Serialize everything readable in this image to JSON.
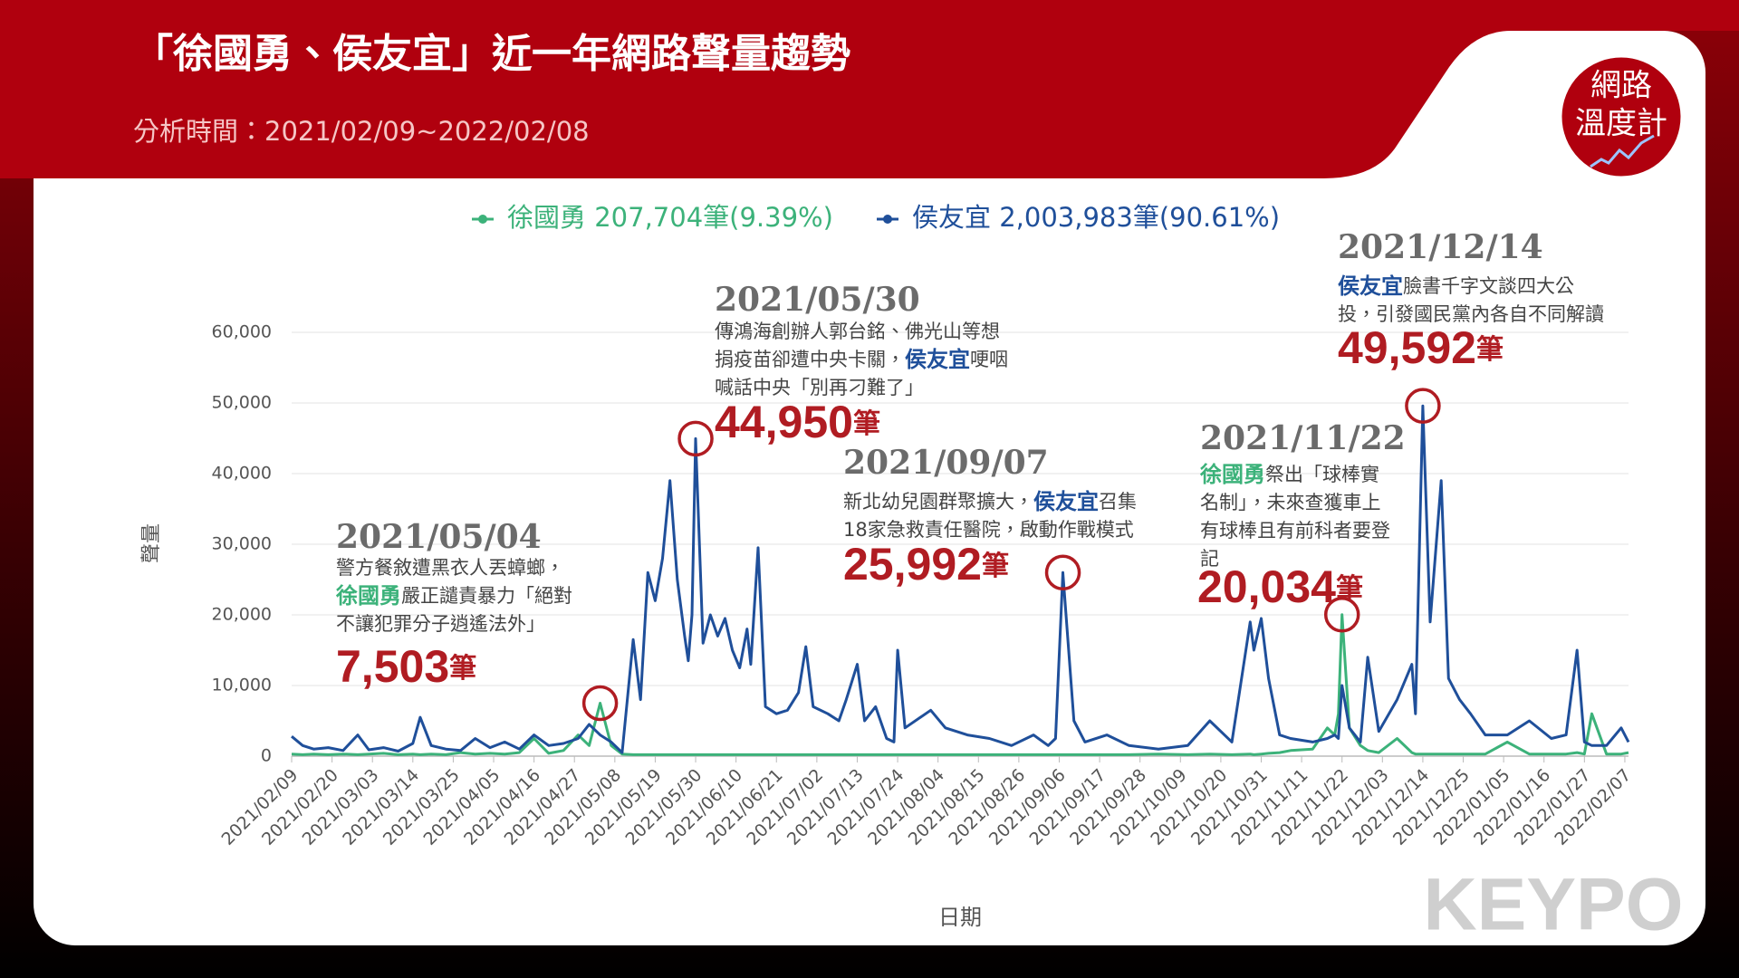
{
  "chart_data": {
    "type": "line",
    "title": "「徐國勇、侯友宜」近一年網路聲量趨勢",
    "subtitle": "分析時間：2021/02/09~2022/02/08",
    "logo": [
      "網路",
      "溫度計"
    ],
    "watermark": "KEYPO",
    "ylabel": "聲量",
    "xlabel": "日期",
    "ylim": [
      0,
      60000
    ],
    "yticks": [
      0,
      {
        "value": 10000,
        "label": "10,000"
      },
      {
        "value": 20000,
        "label": "20,000"
      },
      {
        "value": 30000,
        "label": "30,000"
      },
      {
        "value": 40000,
        "label": "40,000"
      },
      {
        "value": 50000,
        "label": "50,000"
      },
      {
        "value": 60000,
        "label": "60,000"
      }
    ],
    "xlim": [
      "2021/02/09",
      "2022/02/08"
    ],
    "xticks": [
      "2021/02/09",
      "2021/02/20",
      "2021/03/03",
      "2021/03/14",
      "2021/03/25",
      "2021/04/05",
      "2021/04/16",
      "2021/04/27",
      "2021/05/08",
      "2021/05/19",
      "2021/05/30",
      "2021/06/10",
      "2021/06/21",
      "2021/07/02",
      "2021/07/13",
      "2021/07/24",
      "2021/08/04",
      "2021/08/15",
      "2021/08/26",
      "2021/09/06",
      "2021/09/17",
      "2021/09/28",
      "2021/10/09",
      "2021/10/20",
      "2021/10/31",
      "2021/11/11",
      "2021/11/22",
      "2021/12/03",
      "2021/12/14",
      "2021/12/25",
      "2022/01/05",
      "2022/01/16",
      "2022/01/27",
      "2022/02/07"
    ],
    "grid": true,
    "x": [
      "2021/02/09",
      "2021/02/12",
      "2021/02/15",
      "2021/02/19",
      "2021/02/23",
      "2021/02/27",
      "2021/03/02",
      "2021/03/06",
      "2021/03/10",
      "2021/03/14",
      "2021/03/16",
      "2021/03/19",
      "2021/03/23",
      "2021/03/27",
      "2021/03/31",
      "2021/04/04",
      "2021/04/08",
      "2021/04/12",
      "2021/04/16",
      "2021/04/20",
      "2021/04/24",
      "2021/04/28",
      "2021/05/01",
      "2021/05/04",
      "2021/05/07",
      "2021/05/10",
      "2021/05/13",
      "2021/05/15",
      "2021/05/17",
      "2021/05/19",
      "2021/05/21",
      "2021/05/23",
      "2021/05/25",
      "2021/05/27",
      "2021/05/28",
      "2021/05/29",
      "2021/05/30",
      "2021/06/01",
      "2021/06/03",
      "2021/06/05",
      "2021/06/07",
      "2021/06/09",
      "2021/06/11",
      "2021/06/13",
      "2021/06/14",
      "2021/06/16",
      "2021/06/18",
      "2021/06/21",
      "2021/06/24",
      "2021/06/27",
      "2021/06/29",
      "2021/07/01",
      "2021/07/05",
      "2021/07/08",
      "2021/07/10",
      "2021/07/13",
      "2021/07/15",
      "2021/07/18",
      "2021/07/21",
      "2021/07/23",
      "2021/07/24",
      "2021/07/26",
      "2021/08/02",
      "2021/08/06",
      "2021/08/12",
      "2021/08/18",
      "2021/08/24",
      "2021/08/30",
      "2021/09/03",
      "2021/09/05",
      "2021/09/07",
      "2021/09/10",
      "2021/09/13",
      "2021/09/19",
      "2021/09/25",
      "2021/10/03",
      "2021/10/11",
      "2021/10/17",
      "2021/10/23",
      "2021/10/28",
      "2021/10/29",
      "2021/10/31",
      "2021/11/02",
      "2021/11/05",
      "2021/11/08",
      "2021/11/14",
      "2021/11/18",
      "2021/11/20",
      "2021/11/21",
      "2021/11/22",
      "2021/11/24",
      "2021/11/27",
      "2021/11/29",
      "2021/12/02",
      "2021/12/07",
      "2021/12/11",
      "2021/12/12",
      "2021/12/14",
      "2021/12/16",
      "2021/12/19",
      "2021/12/21",
      "2021/12/24",
      "2021/12/27",
      "2021/12/31",
      "2022/01/06",
      "2022/01/12",
      "2022/01/18",
      "2022/01/22",
      "2022/01/25",
      "2022/01/27",
      "2022/01/29",
      "2022/02/02",
      "2022/02/06",
      "2022/02/08"
    ],
    "series": [
      {
        "name": "徐國勇",
        "legend_suffix": "207,704筆(9.39%)",
        "color": "#3cb27a",
        "values": [
          300,
          200,
          300,
          200,
          300,
          200,
          300,
          400,
          200,
          300,
          200,
          300,
          200,
          500,
          300,
          400,
          300,
          500,
          2500,
          400,
          800,
          3000,
          1500,
          7503,
          1500,
          300,
          200,
          200,
          200,
          200,
          200,
          200,
          200,
          200,
          200,
          200,
          200,
          200,
          200,
          200,
          200,
          200,
          200,
          200,
          200,
          200,
          200,
          200,
          200,
          200,
          200,
          200,
          200,
          200,
          200,
          200,
          200,
          200,
          200,
          200,
          200,
          200,
          200,
          200,
          200,
          200,
          200,
          200,
          200,
          200,
          200,
          200,
          200,
          200,
          200,
          300,
          200,
          300,
          200,
          300,
          200,
          300,
          400,
          500,
          800,
          1000,
          4000,
          3000,
          6000,
          20034,
          4000,
          1500,
          800,
          500,
          2500,
          500,
          300,
          300,
          300,
          300,
          300,
          300,
          300,
          300,
          2000,
          300,
          300,
          300,
          500,
          300,
          6000,
          300,
          300,
          500
        ]
      },
      {
        "name": "侯友宜",
        "legend_suffix": "2,003,983筆(90.61%)",
        "color": "#1f4f9a",
        "values": [
          2800,
          1500,
          1000,
          1200,
          800,
          3000,
          900,
          1200,
          700,
          1800,
          5500,
          1500,
          1000,
          800,
          2500,
          1200,
          2000,
          1000,
          3000,
          1500,
          1800,
          2500,
          4500,
          3000,
          2000,
          500,
          16500,
          8000,
          26000,
          22000,
          28000,
          39000,
          25000,
          17000,
          13500,
          20000,
          44950,
          16000,
          20000,
          17000,
          19500,
          15000,
          12500,
          18000,
          13000,
          29500,
          7000,
          6000,
          6500,
          9000,
          15500,
          7000,
          6000,
          5000,
          8000,
          13000,
          5000,
          7000,
          2500,
          2000,
          15000,
          4000,
          6500,
          4000,
          3000,
          2500,
          1500,
          3000,
          1500,
          2500,
          25992,
          5000,
          2000,
          3000,
          1500,
          1000,
          1500,
          5000,
          2000,
          19000,
          15000,
          19500,
          11000,
          3000,
          2500,
          2000,
          2500,
          3000,
          2500,
          10000,
          4000,
          2000,
          14000,
          3500,
          8000,
          13000,
          6000,
          49592,
          19000,
          39000,
          11000,
          8000,
          6000,
          3000,
          3000,
          5000,
          2500,
          3000,
          15000,
          2000,
          1500,
          1500,
          4000,
          2000
        ]
      }
    ],
    "annotations": [
      {
        "date": "2021/05/04",
        "lines": [
          [
            "警方餐敘遭黑衣人丟蟑螂，"
          ],
          [
            "徐國勇",
            "嚴正譴責暴力「絕對"
          ],
          [
            "不讓犯罪分子逍遙法外」"
          ]
        ],
        "number": "7,503",
        "unit": "筆"
      },
      {
        "date": "2021/05/30",
        "lines": [
          [
            "傳鴻海創辦人郭台銘、佛光山等想"
          ],
          [
            "捐疫苗卻遭中央卡關，",
            "侯友宜",
            "哽咽"
          ],
          [
            "喊話中央「別再刁難了」"
          ]
        ],
        "number": "44,950",
        "unit": "筆"
      },
      {
        "date": "2021/09/07",
        "lines": [
          [
            "新北幼兒園群聚擴大，",
            "侯友宜",
            "召集"
          ],
          [
            "18家急救責任醫院，啟動作戰模式"
          ]
        ],
        "number": "25,992",
        "unit": "筆"
      },
      {
        "date": "2021/11/22",
        "lines": [
          [
            "徐國勇",
            "祭出「球棒實"
          ],
          [
            "名制」，未來查獲車上"
          ],
          [
            "有球棒且有前科者要登"
          ],
          [
            "記"
          ]
        ],
        "number": "20,034",
        "unit": "筆"
      },
      {
        "date": "2021/12/14",
        "lines": [
          [
            "侯友宜",
            "臉書千字文談四大公"
          ],
          [
            "投，引發國民黨內各自不同解讀"
          ]
        ],
        "number": "49,592",
        "unit": "筆"
      }
    ]
  }
}
